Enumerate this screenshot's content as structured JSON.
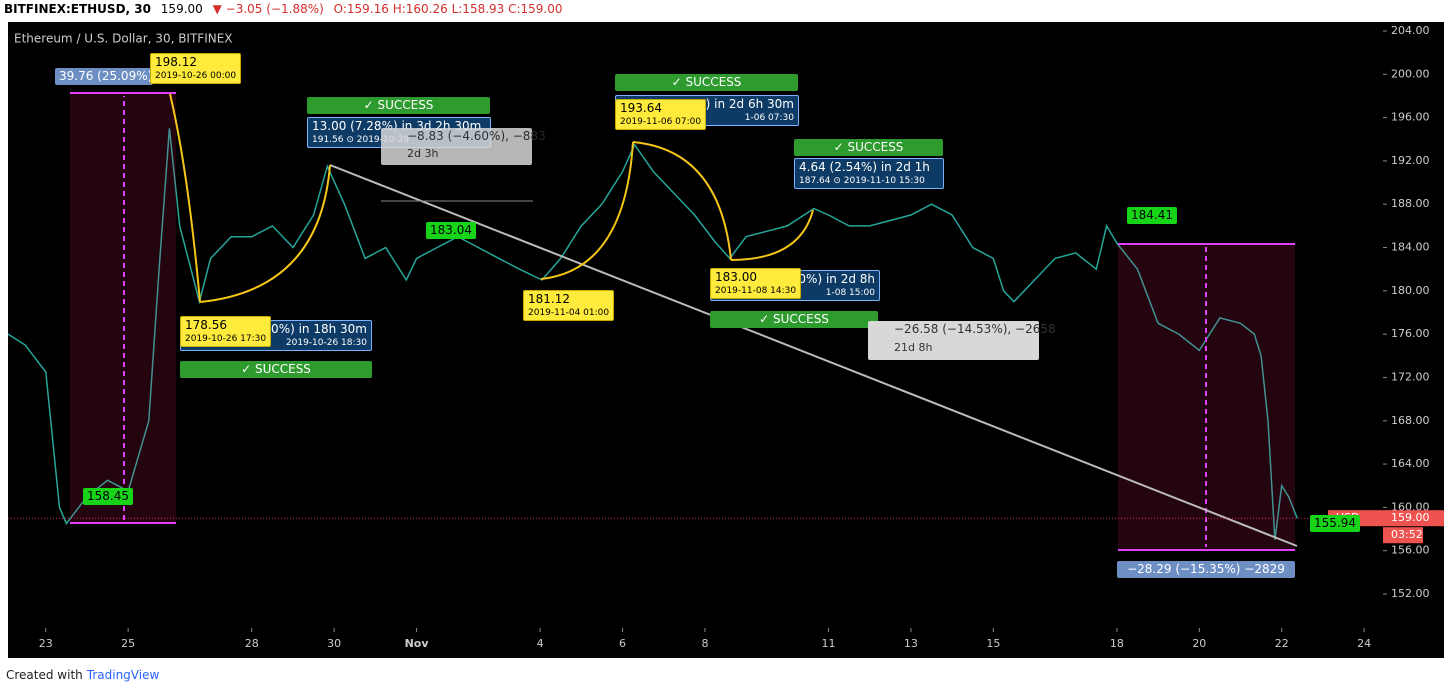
{
  "header": {
    "symbol": "BITFINEX:ETHUSD, 30",
    "price": "159.00",
    "change": "▼ −3.05 (−1.88%)",
    "ohlc": "O:159.16 H:160.26 L:158.93 C:159.00"
  },
  "chart_data": {
    "type": "line",
    "subtitle": "Ethereum / U.S. Dollar, 30, BITFINEX",
    "color": "#26a69a",
    "grid": false,
    "x": [
      "2019-10-22 02:00",
      "2019-10-22 12:00",
      "2019-10-23 00:00",
      "2019-10-23 08:00",
      "2019-10-23 12:00",
      "2019-10-24 00:00",
      "2019-10-24 12:00",
      "2019-10-25 00:00",
      "2019-10-25 12:00",
      "2019-10-25 18:00",
      "2019-10-26 00:00",
      "2019-10-26 06:00",
      "2019-10-26 17:30",
      "2019-10-27 00:00",
      "2019-10-27 12:00",
      "2019-10-28 00:00",
      "2019-10-28 12:00",
      "2019-10-29 00:00",
      "2019-10-29 12:00",
      "2019-10-29 20:00",
      "2019-10-30 06:00",
      "2019-10-30 18:00",
      "2019-10-31 06:00",
      "2019-10-31 18:00",
      "2019-11-01 00:00",
      "2019-11-01 12:00",
      "2019-11-02 00:00",
      "2019-11-02 12:00",
      "2019-11-03 00:00",
      "2019-11-03 12:00",
      "2019-11-04 01:00",
      "2019-11-04 12:00",
      "2019-11-05 00:00",
      "2019-11-05 12:00",
      "2019-11-06 00:00",
      "2019-11-06 07:00",
      "2019-11-06 18:00",
      "2019-11-07 06:00",
      "2019-11-07 18:00",
      "2019-11-08 06:00",
      "2019-11-08 14:30",
      "2019-11-09 00:00",
      "2019-11-09 12:00",
      "2019-11-10 00:00",
      "2019-11-10 15:30",
      "2019-11-11 00:00",
      "2019-11-11 12:00",
      "2019-11-12 00:00",
      "2019-11-12 12:00",
      "2019-11-13 00:00",
      "2019-11-13 12:00",
      "2019-11-14 00:00",
      "2019-11-14 12:00",
      "2019-11-15 00:00",
      "2019-11-15 06:00",
      "2019-11-15 12:00",
      "2019-11-16 00:00",
      "2019-11-16 12:00",
      "2019-11-17 00:00",
      "2019-11-17 12:00",
      "2019-11-17 18:00",
      "2019-11-18 00:00",
      "2019-11-18 12:00",
      "2019-11-19 00:00",
      "2019-11-19 12:00",
      "2019-11-20 00:00",
      "2019-11-20 12:00",
      "2019-11-21 00:00",
      "2019-11-21 08:00",
      "2019-11-21 12:00",
      "2019-11-21 16:00",
      "2019-11-21 20:00",
      "2019-11-22 00:00",
      "2019-11-22 04:00",
      "2019-11-22 09:00"
    ],
    "values": [
      176,
      175,
      172.5,
      160,
      158.5,
      161,
      162.5,
      161.5,
      168,
      182,
      195,
      186,
      179,
      183,
      185,
      185,
      186,
      184,
      187,
      191.5,
      188,
      183,
      184,
      181,
      183,
      184,
      185,
      184,
      183,
      182,
      181,
      183,
      186,
      188,
      191,
      193.5,
      191,
      189,
      187,
      184.5,
      183,
      185,
      185.5,
      186,
      187.6,
      187,
      186,
      186,
      186.5,
      187,
      188,
      187,
      184,
      183,
      180,
      179,
      181,
      183,
      183.5,
      182,
      186,
      184.4,
      182,
      177,
      176,
      174.5,
      177.5,
      177,
      176,
      174,
      168,
      157,
      162,
      161,
      159
    ],
    "xlim": [
      "2019-10-22 02:00",
      "2019-11-24 11:00"
    ],
    "xticks": [
      {
        "value": "2019-10-23 00:00",
        "label": "23"
      },
      {
        "value": "2019-10-25 00:00",
        "label": "25"
      },
      {
        "value": "2019-10-28 00:00",
        "label": "28"
      },
      {
        "value": "2019-10-30 00:00",
        "label": "30"
      },
      {
        "value": "2019-11-01 00:00",
        "label": "Nov"
      },
      {
        "value": "2019-11-04 00:00",
        "label": "4"
      },
      {
        "value": "2019-11-06 00:00",
        "label": "6"
      },
      {
        "value": "2019-11-08 00:00",
        "label": "8"
      },
      {
        "value": "2019-11-11 00:00",
        "label": "11"
      },
      {
        "value": "2019-11-13 00:00",
        "label": "13"
      },
      {
        "value": "2019-11-15 00:00",
        "label": "15"
      },
      {
        "value": "2019-11-18 00:00",
        "label": "18"
      },
      {
        "value": "2019-11-20 00:00",
        "label": "20"
      },
      {
        "value": "2019-11-22 00:00",
        "label": "22"
      },
      {
        "value": "2019-11-24 00:00",
        "label": "24"
      }
    ],
    "ylim": [
      148.86,
      204.83
    ],
    "yticks": [
      {
        "value": 152,
        "label": "152.00"
      },
      {
        "value": 156,
        "label": "156.00"
      },
      {
        "value": 160,
        "label": "160.00"
      },
      {
        "value": 164,
        "label": "164.00"
      },
      {
        "value": 168,
        "label": "168.00"
      },
      {
        "value": 172,
        "label": "172.00"
      },
      {
        "value": 176,
        "label": "176.00"
      },
      {
        "value": 180,
        "label": "180.00"
      },
      {
        "value": 184,
        "label": "184.00"
      },
      {
        "value": 188,
        "label": "188.00"
      },
      {
        "value": 192,
        "label": "192.00"
      },
      {
        "value": 196,
        "label": "196.00"
      },
      {
        "value": 200,
        "label": "200.00"
      },
      {
        "value": 204,
        "label": "204.00"
      }
    ],
    "last_price": {
      "value": 159,
      "label": "159.00"
    },
    "symbol_tag": "USD",
    "countdown": "03:52"
  },
  "annotations": [
    {
      "lines": [
        "39.76 (25.09%)"
      ]
    },
    {
      "lines": [
        "198.12",
        "2019-10-26 00:00"
      ]
    },
    {
      "lines": [
        "158.45"
      ]
    },
    {
      "lines": [
        "✓ SUCCESS"
      ]
    },
    {
      "lines": [
        "13.00 (7.28%) in 3d 2h 30m",
        "191.56 ⊙ 2019-10-29"
      ]
    },
    {
      "lines": [
        "−8.83 (−4.60%), −883",
        "2d 3h"
      ]
    },
    {
      "lines": [
        "00%) in 18h 30m",
        "2019-10-26 18:30"
      ]
    },
    {
      "lines": [
        "178.56",
        "2019-10-26 17:30"
      ]
    },
    {
      "lines": [
        "✓ SUCCESS"
      ]
    },
    {
      "lines": [
        "183.04"
      ]
    },
    {
      "lines": [
        "181.12",
        "2019-11-04 01:00"
      ]
    },
    {
      "lines": [
        "✓ SUCCESS"
      ]
    },
    {
      "lines": [
        ") in 2d 6h 30m",
        "1-06 07:30"
      ]
    },
    {
      "lines": [
        "193.64",
        "2019-11-06 07:00"
      ]
    },
    {
      "lines": [
        "✓ SUCCESS"
      ]
    },
    {
      "lines": [
        "4.64 (2.54%) in 2d 1h",
        "187.64 ⊙ 2019-11-10 15:30"
      ]
    },
    {
      "lines": [
        "0%) in 2d 8h",
        "1-08 15:00"
      ]
    },
    {
      "lines": [
        "183.00",
        "2019-11-08 14:30"
      ]
    },
    {
      "lines": [
        "✓ SUCCESS"
      ]
    },
    {
      "lines": [
        "−26.58 (−14.53%), −2658",
        "21d 8h"
      ]
    },
    {
      "lines": [
        "184.41"
      ]
    },
    {
      "lines": [
        "155.94"
      ]
    },
    {
      "lines": [
        "−28.29 (−15.35%) −2829"
      ]
    }
  ],
  "footer": {
    "created": "Created with",
    "brand": "TradingView"
  }
}
